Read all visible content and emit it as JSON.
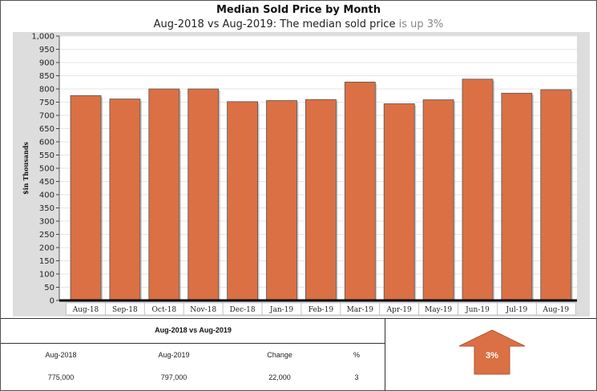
{
  "header": {
    "title": "Median Sold Price by Month",
    "subtitle_main": "Aug-2018 vs Aug-2019: The median sold price ",
    "subtitle_highlight": "is up 3%"
  },
  "chart_data": {
    "type": "bar",
    "categories": [
      "Aug-18",
      "Sep-18",
      "Oct-18",
      "Nov-18",
      "Dec-18",
      "Jan-19",
      "Feb-19",
      "Mar-19",
      "Apr-19",
      "May-19",
      "Jun-19",
      "Jul-19",
      "Aug-19"
    ],
    "values": [
      775,
      762,
      800,
      800,
      752,
      756,
      760,
      826,
      744,
      759,
      837,
      784,
      797
    ],
    "ylabel": "$in Thousands",
    "ylim": [
      0,
      1000
    ],
    "yticks": [
      "0",
      "50",
      "100",
      "150",
      "200",
      "250",
      "300",
      "350",
      "400",
      "450",
      "500",
      "550",
      "600",
      "650",
      "700",
      "750",
      "800",
      "850",
      "900",
      "950",
      "1,000"
    ],
    "grid": true,
    "colors": {
      "bar": "#db7045",
      "bar_stroke": "#555555",
      "plot_bg": "#ffffff",
      "outer_bg": "#dddddd"
    }
  },
  "summary": {
    "title": "Aug-2018 vs Aug-2019",
    "headers": [
      "Aug-2018",
      "Aug-2019",
      "Change",
      "%"
    ],
    "values": [
      "775,000",
      "797,000",
      "22,000",
      "3"
    ],
    "arrow_label": "3%",
    "arrow_color": "#db7045"
  }
}
